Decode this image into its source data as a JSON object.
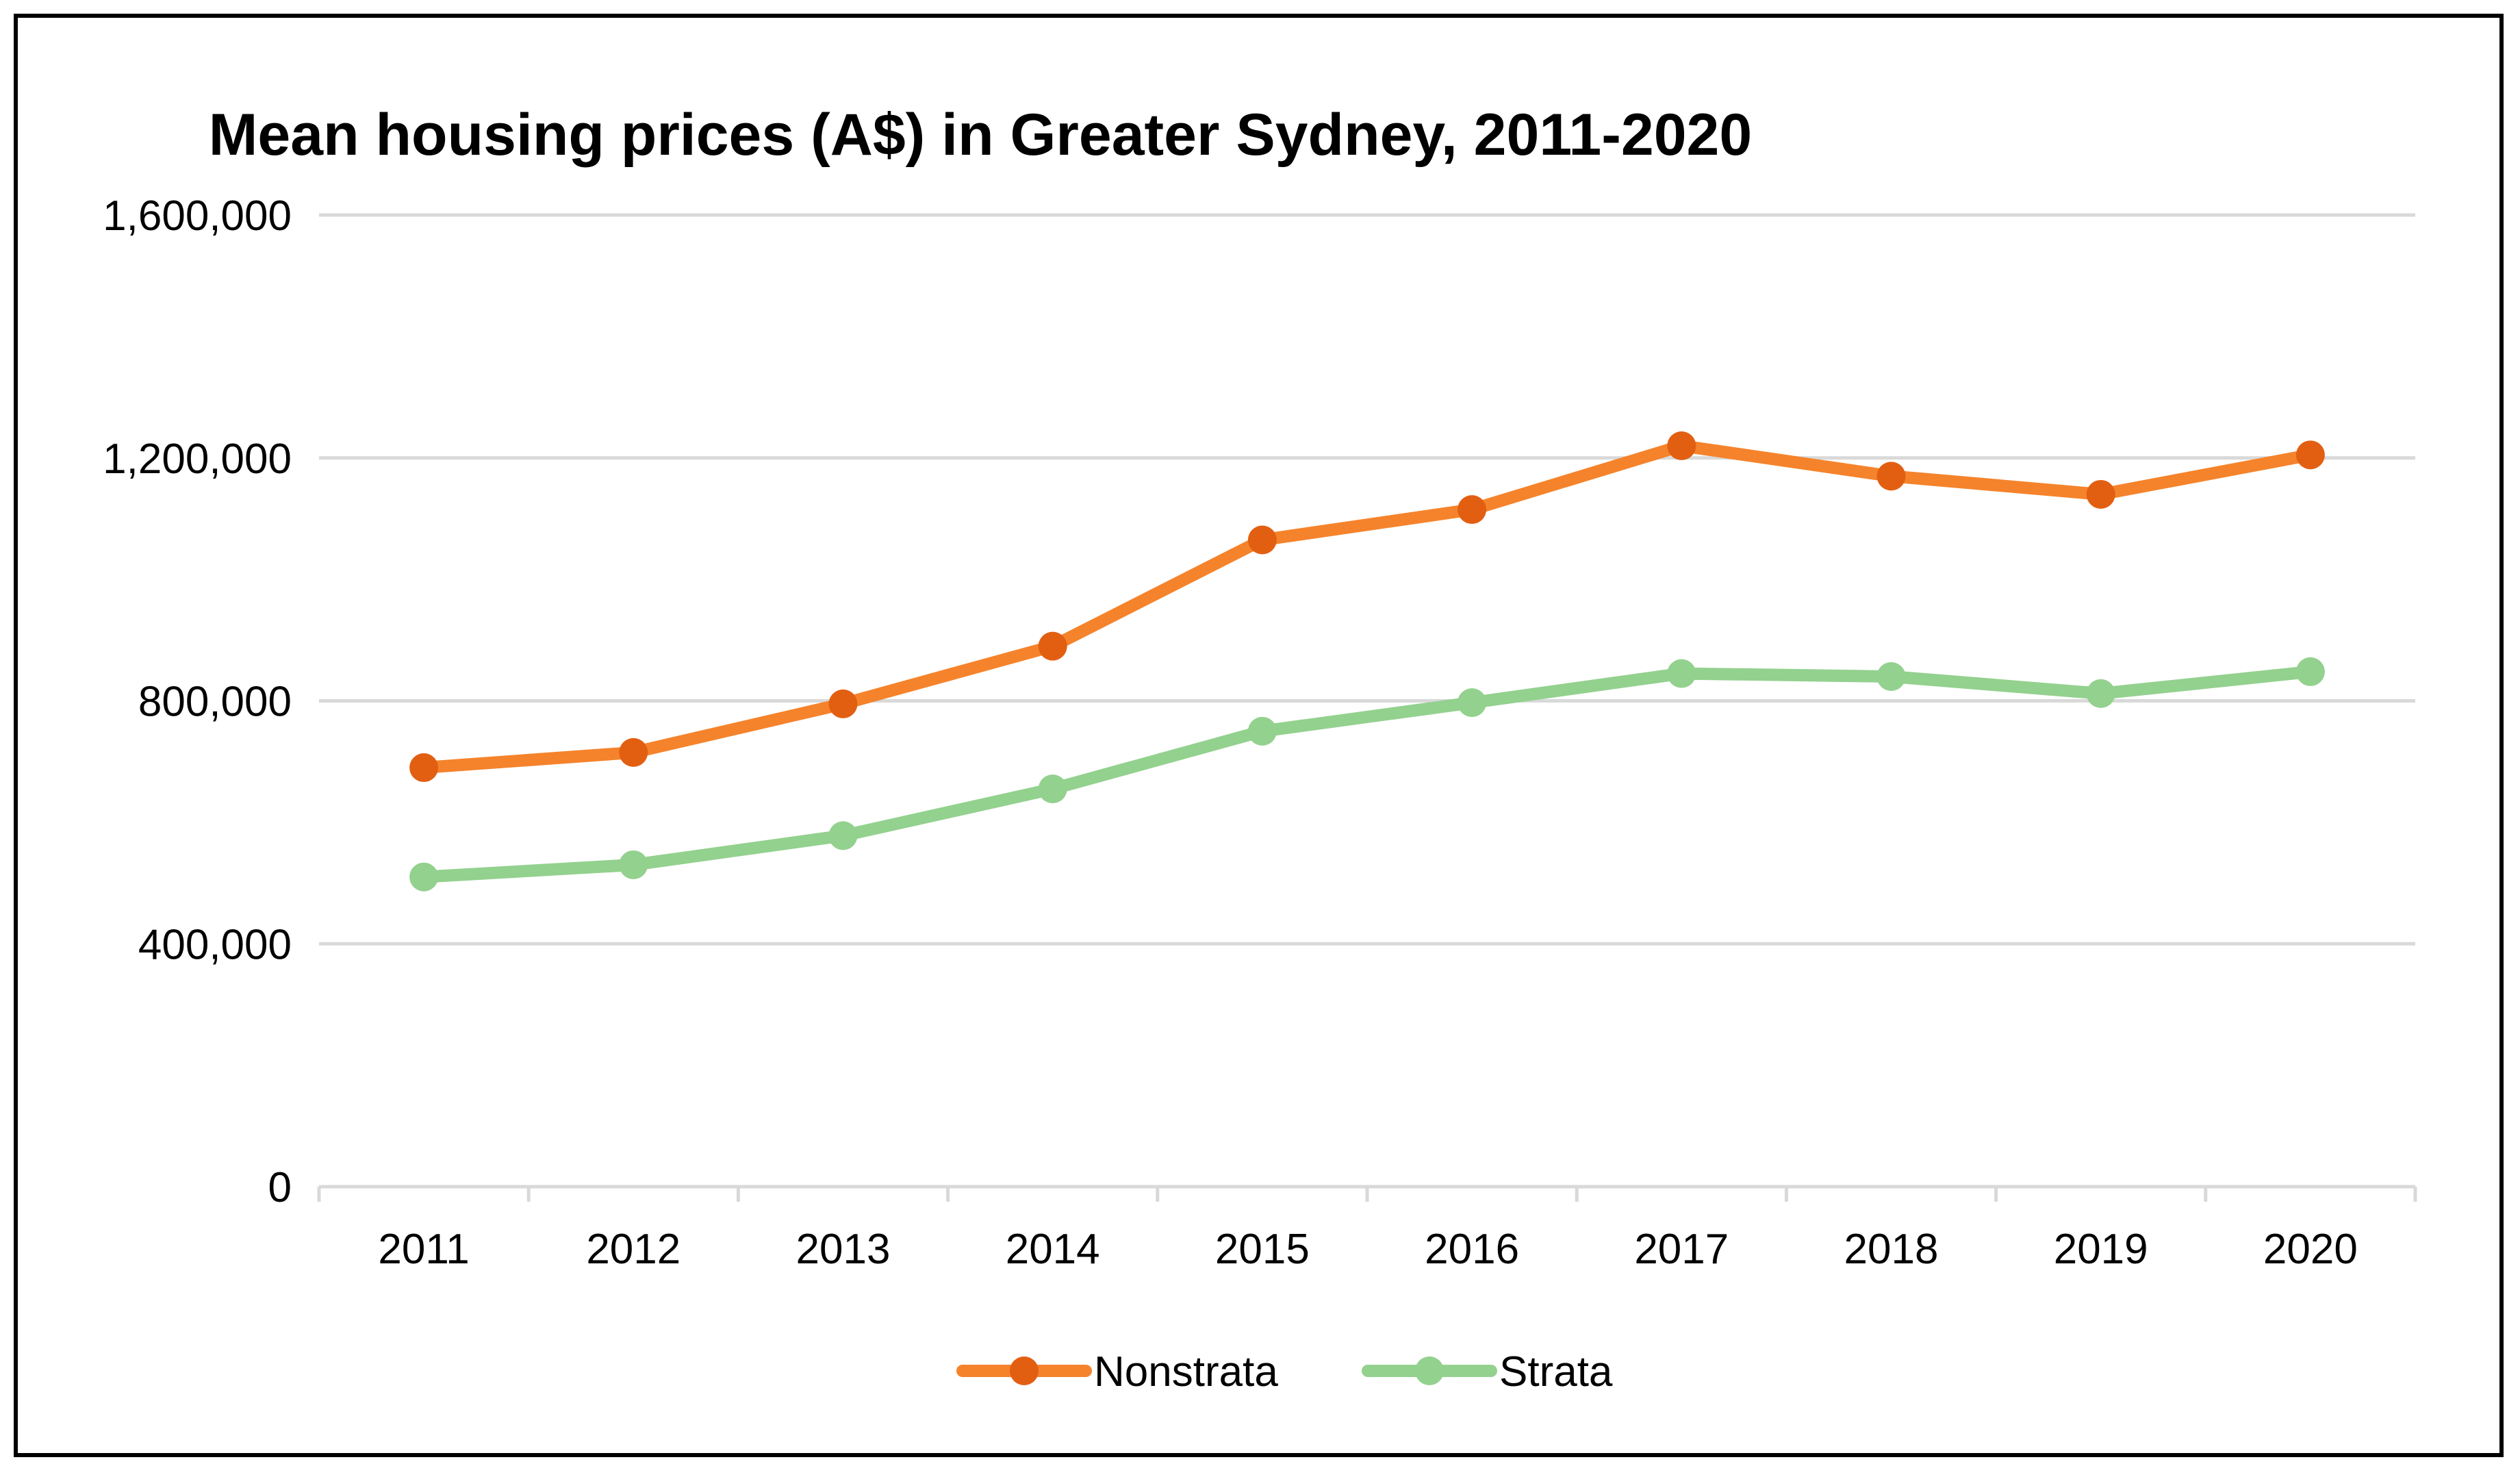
{
  "chart_data": {
    "type": "line",
    "title": "Mean housing prices (A$) in Greater Sydney, 2011-2020",
    "xlabel": "",
    "ylabel": "",
    "categories": [
      "2011",
      "2012",
      "2013",
      "2014",
      "2015",
      "2016",
      "2017",
      "2018",
      "2019",
      "2020"
    ],
    "ylim": [
      0,
      1600000
    ],
    "yticks": [
      0,
      400000,
      800000,
      1200000,
      1600000
    ],
    "ytick_labels": [
      "0",
      "400,000",
      "800,000",
      "1,200,000",
      "1,600,000"
    ],
    "grid": true,
    "legend_position": "bottom",
    "series": [
      {
        "name": "Nonstrata",
        "color": "#F5832B",
        "marker_color": "#E25F12",
        "values": [
          690000,
          715000,
          795000,
          890000,
          1065000,
          1115000,
          1220000,
          1170000,
          1140000,
          1205000
        ]
      },
      {
        "name": "Strata",
        "color": "#93D18E",
        "marker_color": "#93D18E",
        "values": [
          510000,
          530000,
          578000,
          655000,
          750000,
          797000,
          845000,
          840000,
          812000,
          848000
        ]
      }
    ]
  }
}
